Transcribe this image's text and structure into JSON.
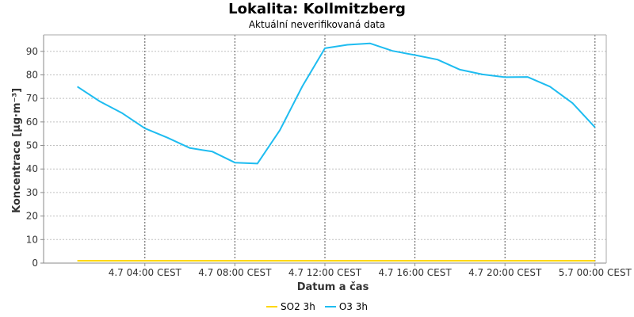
{
  "title": "Lokalita: Kollmitzberg",
  "subtitle": "Aktuální neverifikovaná data",
  "chart_data": {
    "type": "line",
    "xlabel": "Datum a čas",
    "ylabel": "Koncentrace [µg·m⁻³]",
    "ylim": [
      0,
      97
    ],
    "yticks": [
      0,
      10,
      20,
      30,
      40,
      50,
      60,
      70,
      80,
      90
    ],
    "x_range_hours": [
      -0.5,
      24.5
    ],
    "xticks": [
      {
        "hour": 4,
        "label": "4.7 04:00 CEST"
      },
      {
        "hour": 8,
        "label": "4.7 08:00 CEST"
      },
      {
        "hour": 12,
        "label": "4.7 12:00 CEST"
      },
      {
        "hour": 16,
        "label": "4.7 16:00 CEST"
      },
      {
        "hour": 20,
        "label": "4.7 20:00 CEST"
      },
      {
        "hour": 24,
        "label": "5.7 00:00 CEST"
      }
    ],
    "grid": true,
    "legend_position": "bottom",
    "series": [
      {
        "name": "SO2 3h",
        "color": "#ffd700",
        "x": [
          1,
          2,
          3,
          4,
          5,
          6,
          7,
          8,
          9,
          10,
          11,
          12,
          13,
          14,
          15,
          16,
          17,
          18,
          19,
          20,
          21,
          22,
          23,
          24
        ],
        "y": [
          1,
          1,
          1,
          1,
          1,
          1,
          1,
          1,
          1,
          1,
          1,
          1,
          1,
          1,
          1,
          1,
          1,
          1,
          1,
          1,
          1,
          1,
          1,
          1
        ]
      },
      {
        "name": "O3 3h",
        "color": "#1ebcf0",
        "x": [
          1,
          2,
          3,
          4,
          5,
          6,
          7,
          8,
          9,
          10,
          11,
          12,
          13,
          14,
          15,
          16,
          17,
          18,
          19,
          20,
          21,
          22,
          23,
          24
        ],
        "y": [
          75,
          68.7,
          63.7,
          57.3,
          53.3,
          48.9,
          47.4,
          42.7,
          42.3,
          56.5,
          75.2,
          91.3,
          92.8,
          93.4,
          90.2,
          88.4,
          86.5,
          82.2,
          80.2,
          79,
          79.1,
          75,
          68,
          57.7
        ]
      }
    ]
  }
}
